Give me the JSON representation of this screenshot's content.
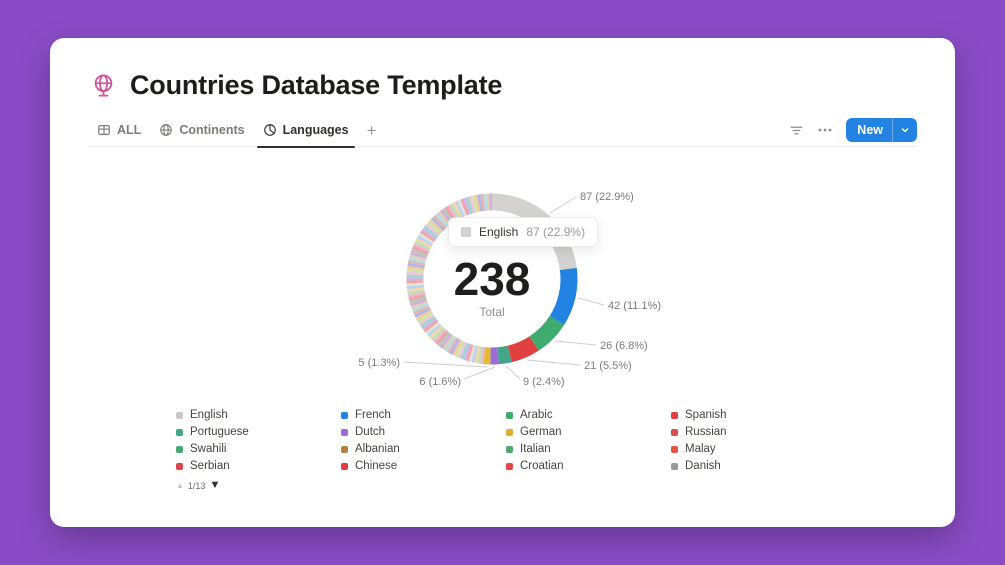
{
  "page": {
    "background_color": "#8a4cc6",
    "card_color": "#ffffff"
  },
  "header": {
    "title": "Countries Database Template",
    "icon": "globe-on-stand-icon",
    "icon_color": "#d1569e"
  },
  "toolbar": {
    "tabs": [
      {
        "label": "ALL",
        "icon": "table-icon"
      },
      {
        "label": "Continents",
        "icon": "globe-icon"
      },
      {
        "label": "Languages",
        "icon": "pie-chart-icon"
      }
    ],
    "active_tab": "Languages",
    "add_view_label": "+",
    "icons": {
      "filter": "filter-icon",
      "more": "ellipsis-icon"
    },
    "new_button": {
      "label": "New",
      "color": "#2383e2",
      "chevron": "chevron-down-icon"
    }
  },
  "chart_data": {
    "type": "pie",
    "title": "Languages",
    "total_label": "238",
    "center_caption": "Total",
    "legend_position": "bottom",
    "tooltip": {
      "label": "English",
      "value_text": "87 (22.9%)",
      "swatch_color": "#d3d2d0"
    },
    "segments": [
      {
        "label": "English",
        "value": 87,
        "percent": 22.9,
        "color": "#d3d2d0"
      },
      {
        "label": "French",
        "value": 42,
        "percent": 11.1,
        "color": "#2383e2"
      },
      {
        "label": "Arabic",
        "value": 26,
        "percent": 6.8,
        "color": "#3fab6e"
      },
      {
        "label": "Spanish",
        "value": 21,
        "percent": 5.5,
        "color": "#e04040"
      },
      {
        "label": "Portuguese",
        "value": 9,
        "percent": 2.4,
        "color": "#42a68a"
      },
      {
        "label": "Dutch",
        "value": 6,
        "percent": 1.6,
        "color": "#9a6dd7"
      },
      {
        "label": "German",
        "value": 5,
        "percent": 1.3,
        "color": "#e2b93b"
      }
    ],
    "others": {
      "percent_total": 48.4,
      "slice_count": 88,
      "palette": [
        "#f0b8c4",
        "#bfe0c0",
        "#f3d9a4",
        "#bcd2f2",
        "#e3e2e0",
        "#f2a69e",
        "#cbb8ee",
        "#9ed8cd",
        "#f2c4e0",
        "#cde6a8",
        "#f5c9a1",
        "#aab8ee",
        "#e8b4ae",
        "#b2dff0",
        "#e0d2b0",
        "#d4aee2",
        "#b6ccb2",
        "#ef9fb0"
      ]
    }
  },
  "legend": {
    "items": [
      {
        "label": "English",
        "color": "#c9c8c6"
      },
      {
        "label": "French",
        "color": "#2383e2"
      },
      {
        "label": "Arabic",
        "color": "#3fab6e"
      },
      {
        "label": "Spanish",
        "color": "#e04040"
      },
      {
        "label": "Portuguese",
        "color": "#42a68a"
      },
      {
        "label": "Dutch",
        "color": "#9a6dd7"
      },
      {
        "label": "German",
        "color": "#dfae2e"
      },
      {
        "label": "Russian",
        "color": "#d4504a"
      },
      {
        "label": "Swahili",
        "color": "#46a86f"
      },
      {
        "label": "Albanian",
        "color": "#b97f42"
      },
      {
        "label": "Italian",
        "color": "#4fa86f"
      },
      {
        "label": "Malay",
        "color": "#de5642"
      },
      {
        "label": "Serbian",
        "color": "#d4474a"
      },
      {
        "label": "Chinese",
        "color": "#e03e3e"
      },
      {
        "label": "Croatian",
        "color": "#e34444"
      },
      {
        "label": "Danish",
        "color": "#9b9a97"
      }
    ],
    "pagination": {
      "page_indicator": "1/13"
    }
  }
}
